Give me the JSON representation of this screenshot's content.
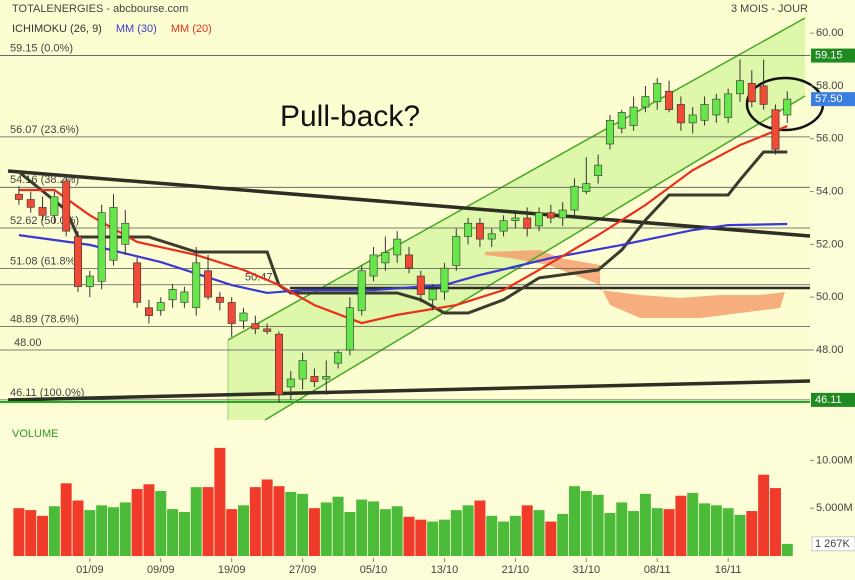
{
  "chart_data": {
    "type": "candlestick",
    "title": "TOTALENERGIES - abcbourse.com",
    "subtitle": "3 MOIS - JOUR",
    "annotation": "Pull-back?",
    "xlim": [
      -0.5,
      66.5
    ],
    "xticks": [
      {
        "value": 6,
        "label": "01/09"
      },
      {
        "value": 12,
        "label": "09/09"
      },
      {
        "value": 18,
        "label": "19/09"
      },
      {
        "value": 24,
        "label": "27/09"
      },
      {
        "value": 30,
        "label": "05/10"
      },
      {
        "value": 36,
        "label": "13/10"
      },
      {
        "value": 42,
        "label": "21/10"
      },
      {
        "value": 48,
        "label": "31/10"
      },
      {
        "value": 54,
        "label": "08/11"
      },
      {
        "value": 60,
        "label": "16/11"
      }
    ],
    "ylim": [
      45.5,
      60.8
    ],
    "yticks": [
      {
        "value": 60,
        "label": "60.00"
      },
      {
        "value": 58,
        "label": "58.00"
      },
      {
        "value": 56,
        "label": "56.00"
      },
      {
        "value": 54,
        "label": "54.00"
      },
      {
        "value": 52,
        "label": "52.00"
      },
      {
        "value": 50,
        "label": "50.00"
      },
      {
        "value": 48,
        "label": "48.00"
      }
    ],
    "up_color": "#66e64a",
    "down_color": "#ee4a35",
    "open": [
      53.9,
      53.7,
      53.4,
      53.1,
      54.4,
      52.3,
      50.4,
      50.6,
      51.4,
      52.0,
      51.3,
      49.6,
      49.5,
      49.9,
      49.8,
      49.6,
      51.0,
      50.0,
      49.8,
      49.1,
      49.0,
      48.8,
      48.6,
      46.6,
      46.9,
      47.0,
      46.9,
      47.5,
      48.0,
      49.5,
      50.8,
      51.3,
      51.6,
      51.6,
      50.8,
      49.9,
      50.2,
      51.2,
      52.3,
      52.8,
      52.2,
      52.5,
      52.9,
      53.0,
      52.7,
      53.2,
      53.0,
      53.3,
      54.0,
      54.6,
      55.8,
      56.4,
      56.5,
      57.2,
      57.4,
      57.8,
      57.3,
      56.6,
      56.7,
      56.9,
      56.8,
      57.7,
      58.1,
      58.0,
      57.1,
      56.9
    ],
    "high": [
      54.2,
      54.0,
      53.8,
      54.0,
      54.6,
      52.5,
      51.0,
      53.5,
      53.9,
      53.3,
      51.5,
      49.9,
      50.0,
      50.5,
      50.4,
      51.9,
      51.6,
      50.2,
      50.0,
      49.6,
      49.3,
      49.0,
      48.7,
      47.2,
      47.9,
      47.3,
      47.6,
      48.0,
      50.0,
      51.2,
      51.9,
      52.3,
      52.5,
      51.9,
      51.0,
      50.5,
      51.3,
      52.6,
      53.0,
      53.0,
      52.6,
      53.1,
      53.3,
      53.4,
      53.4,
      53.5,
      53.6,
      54.5,
      55.3,
      55.4,
      56.9,
      57.1,
      57.6,
      58.0,
      58.3,
      58.2,
      57.6,
      57.2,
      57.6,
      57.7,
      57.9,
      59.0,
      58.6,
      59.0,
      57.3,
      57.8
    ],
    "low": [
      53.5,
      53.2,
      52.9,
      52.8,
      52.3,
      50.2,
      50.0,
      50.3,
      51.2,
      51.6,
      49.6,
      49.0,
      49.3,
      49.6,
      49.6,
      49.3,
      49.9,
      49.5,
      48.5,
      48.8,
      48.6,
      48.6,
      46.0,
      46.1,
      46.5,
      46.6,
      46.3,
      47.3,
      47.8,
      49.3,
      50.6,
      51.0,
      51.3,
      50.9,
      49.8,
      49.5,
      49.9,
      51.0,
      52.0,
      51.9,
      51.9,
      52.3,
      52.6,
      52.3,
      52.5,
      52.8,
      52.7,
      53.1,
      53.9,
      54.3,
      55.6,
      56.2,
      56.3,
      57.0,
      57.1,
      57.0,
      56.3,
      56.2,
      56.5,
      56.6,
      56.6,
      57.4,
      57.2,
      57.1,
      55.4,
      56.6
    ],
    "close": [
      53.7,
      53.4,
      53.1,
      53.8,
      52.5,
      50.4,
      50.8,
      53.2,
      53.4,
      52.8,
      49.8,
      49.3,
      49.8,
      50.3,
      50.2,
      51.3,
      50.0,
      49.8,
      49.0,
      49.4,
      48.8,
      48.7,
      46.3,
      46.9,
      47.6,
      46.8,
      47.0,
      47.9,
      49.6,
      51.0,
      51.6,
      51.7,
      52.2,
      51.1,
      50.1,
      50.3,
      51.1,
      52.3,
      52.8,
      52.2,
      52.4,
      52.9,
      53.0,
      52.6,
      53.2,
      53.0,
      53.3,
      54.2,
      54.3,
      55.0,
      56.7,
      57.0,
      57.2,
      57.6,
      58.1,
      57.1,
      56.6,
      56.9,
      57.3,
      57.5,
      57.7,
      58.2,
      57.4,
      57.3,
      55.6,
      57.5
    ],
    "lines": [
      {
        "name": "ICHIMOKU (26, 9)",
        "color": "#3a3a2e",
        "x": [
          0,
          4,
          5,
          11,
          15,
          21,
          22,
          23,
          32,
          34,
          36,
          38,
          41,
          44,
          49,
          51,
          53,
          55,
          60,
          61,
          63,
          65
        ],
        "values": [
          54.74,
          53.3,
          52.28,
          52.28,
          51.71,
          51.71,
          50.46,
          50.16,
          50.16,
          49.9,
          49.4,
          49.4,
          49.9,
          50.73,
          51.03,
          51.79,
          52.92,
          53.87,
          53.87,
          54.44,
          55.5,
          55.5
        ]
      },
      {
        "name": "MM (30)",
        "color": "#3a3ad0",
        "x": [
          0,
          6,
          12,
          18,
          21,
          24,
          30,
          36,
          39,
          45,
          51,
          57,
          60,
          65
        ],
        "values": [
          52.35,
          51.98,
          51.33,
          50.46,
          50.16,
          50.27,
          50.27,
          50.46,
          50.84,
          51.48,
          51.98,
          52.54,
          52.73,
          52.77
        ]
      },
      {
        "name": "MM (20)",
        "color": "#e8301c",
        "x": [
          0,
          3,
          6,
          10,
          15,
          19,
          22,
          25,
          29,
          32,
          37,
          41,
          44,
          49,
          53,
          57,
          61,
          65
        ],
        "values": [
          54.06,
          54.06,
          53.1,
          52.09,
          51.6,
          51.03,
          50.46,
          49.7,
          49.02,
          49.33,
          49.7,
          50.27,
          51.03,
          52.35,
          53.49,
          54.81,
          55.76,
          56.48
        ]
      }
    ],
    "levels": [
      {
        "value": 59.15,
        "label": "59.15 (0.0%)"
      },
      {
        "value": 56.07,
        "label": "56.07 (23.6%)"
      },
      {
        "value": 54.16,
        "label": "54.16 (38.2%)"
      },
      {
        "value": 52.62,
        "label": "52.62 (50.0%)"
      },
      {
        "value": 51.08,
        "label": "51.08 (61.8%)"
      },
      {
        "value": 50.47,
        "label": "50.47"
      },
      {
        "value": 48.89,
        "label": "48.89 (78.6%)"
      },
      {
        "value": 48,
        "label": "48.00"
      },
      {
        "value": 46.11,
        "label": "46.11 (100.0%)"
      }
    ],
    "badges": [
      {
        "value": 59.15,
        "label": "59.15",
        "color": "#1f8a1f"
      },
      {
        "value": 57.5,
        "label": "57.50",
        "color": "#3a7fe0"
      },
      {
        "value": 46.11,
        "label": "46.11",
        "color": "#1f8a1f"
      }
    ],
    "volume": {
      "title": "VOLUME",
      "ylim": [
        0,
        11.5
      ],
      "yticks": [
        {
          "value": 10,
          "label": "10.00M"
        },
        {
          "value": 5,
          "label": "5.000M"
        }
      ],
      "values": [
        5.0,
        4.8,
        4.2,
        5.2,
        7.6,
        5.8,
        4.8,
        5.3,
        5.1,
        5.6,
        7.0,
        7.5,
        6.8,
        4.9,
        4.6,
        7.2,
        7.2,
        11.3,
        4.9,
        5.3,
        7.2,
        8.0,
        7.3,
        6.7,
        6.5,
        5.0,
        5.6,
        6.2,
        4.6,
        5.9,
        5.7,
        4.9,
        5.2,
        4.1,
        3.8,
        3.6,
        3.8,
        4.8,
        5.3,
        5.8,
        4.2,
        3.6,
        4.2,
        5.3,
        4.8,
        3.6,
        4.4,
        7.3,
        6.8,
        6.4,
        4.5,
        5.6,
        4.7,
        6.5,
        5.0,
        4.9,
        6.3,
        6.6,
        5.5,
        5.3,
        5.0,
        4.3,
        4.7,
        8.5,
        7.1,
        1.267
      ],
      "last_label": "1 267K"
    }
  }
}
